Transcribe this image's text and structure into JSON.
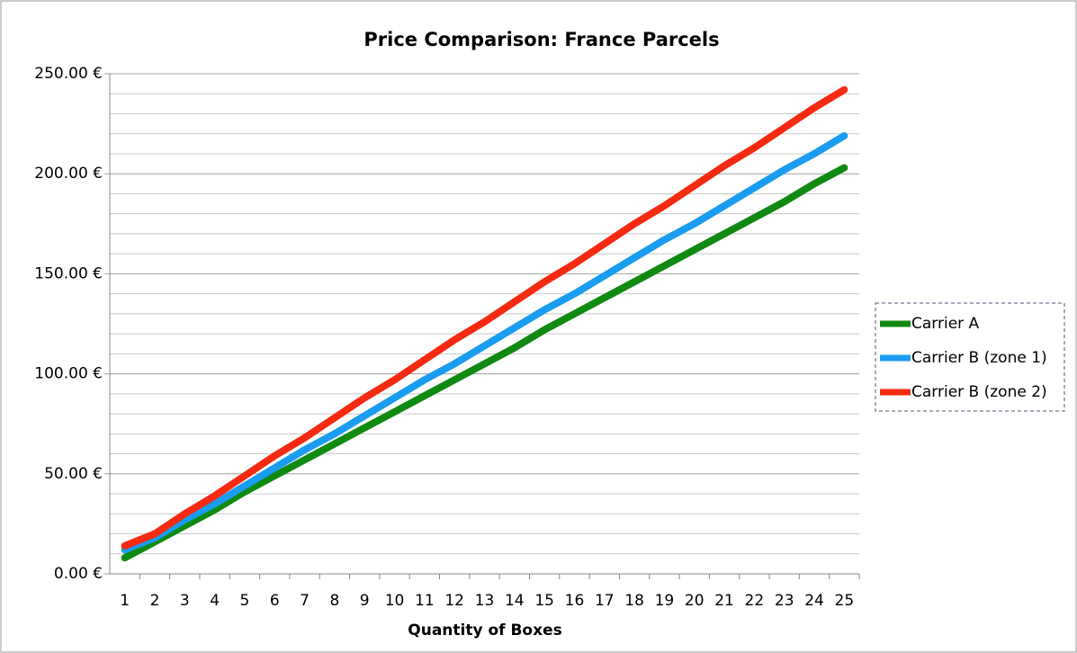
{
  "chart_data": {
    "type": "line",
    "title": "Price Comparison: France Parcels",
    "x_label": "Quantity of Boxes",
    "categories": [
      "1",
      "2",
      "3",
      "4",
      "5",
      "6",
      "7",
      "8",
      "9",
      "10",
      "11",
      "12",
      "13",
      "14",
      "15",
      "16",
      "17",
      "18",
      "19",
      "20",
      "21",
      "22",
      "23",
      "24",
      "25"
    ],
    "series": [
      {
        "name": "Carrier A",
        "color": "#108a10",
        "values": [
          8,
          16,
          24,
          32,
          41,
          49,
          57,
          65,
          73,
          81,
          89,
          97,
          105,
          113,
          122,
          130,
          138,
          146,
          154,
          162,
          170,
          178,
          186,
          195,
          203
        ]
      },
      {
        "name": "Carrier B (zone 1)",
        "color": "#1a9cf0",
        "values": [
          12,
          18,
          27,
          35,
          44,
          53,
          62,
          70,
          79,
          88,
          97,
          105,
          114,
          123,
          132,
          140,
          149,
          158,
          167,
          175,
          184,
          193,
          202,
          210,
          219
        ]
      },
      {
        "name": "Carrier B (zone 2)",
        "color": "#f52a10",
        "values": [
          14,
          20,
          30,
          39,
          49,
          59,
          68,
          78,
          88,
          97,
          107,
          117,
          126,
          136,
          146,
          155,
          165,
          175,
          184,
          194,
          204,
          213,
          223,
          233,
          242
        ]
      }
    ],
    "ylim": [
      0,
      250
    ],
    "yticks": [
      {
        "value": 0,
        "label": "0.00 €"
      },
      {
        "value": 50,
        "label": "50.00 €"
      },
      {
        "value": 100,
        "label": "100.00 €"
      },
      {
        "value": 150,
        "label": "150.00 €"
      },
      {
        "value": 200,
        "label": "200.00 €"
      },
      {
        "value": 250,
        "label": "250.00 €"
      }
    ],
    "minor_yticks": [
      10,
      20,
      30,
      40,
      60,
      70,
      80,
      90,
      110,
      120,
      130,
      140,
      160,
      170,
      180,
      190,
      210,
      220,
      230,
      240
    ],
    "grid": true,
    "legend": "right"
  }
}
